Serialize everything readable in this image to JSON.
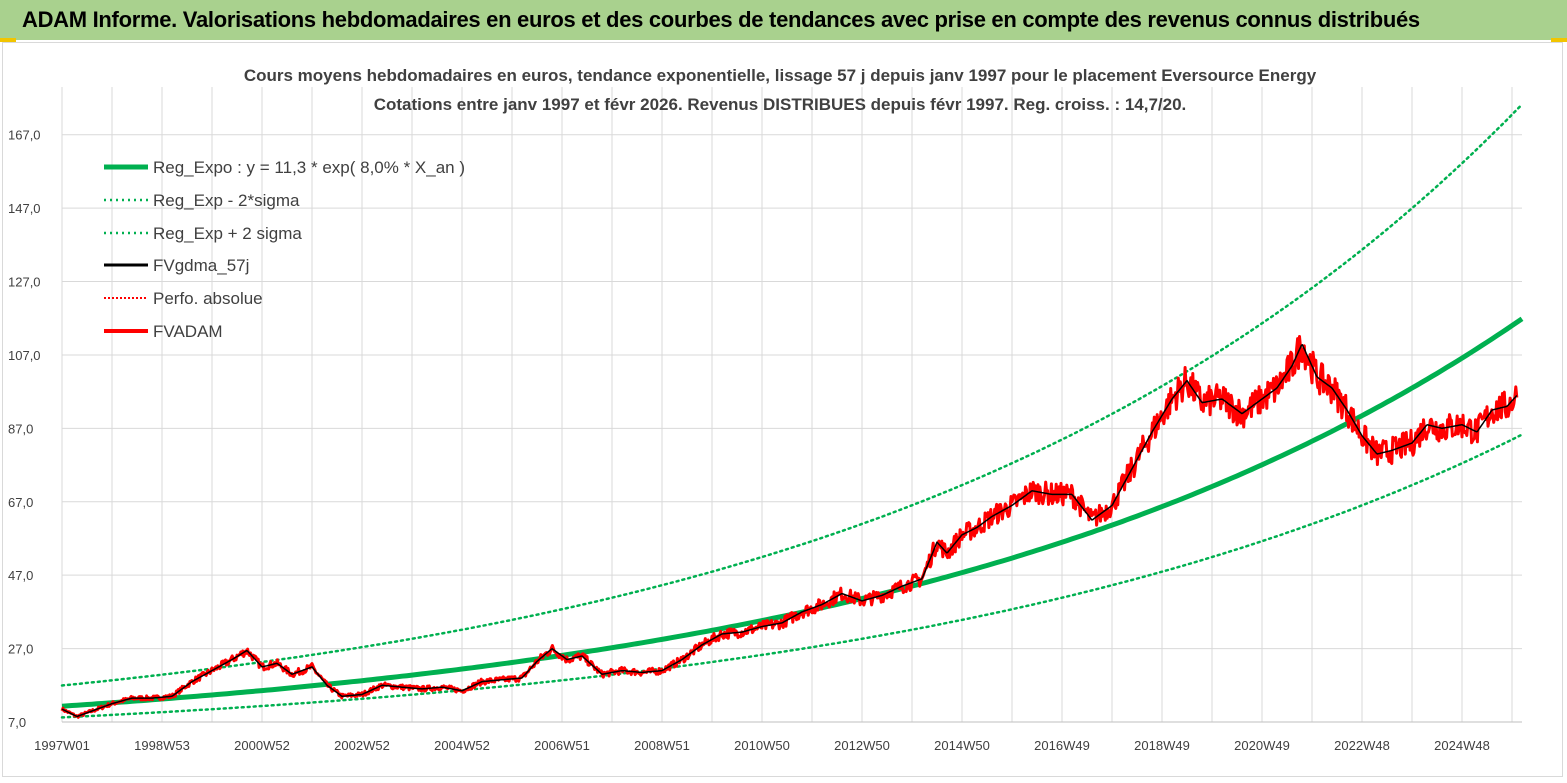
{
  "banner": {
    "title": "ADAM Informe. Valorisations hebdomadaires en euros et des courbes de tendances avec prise en compte des revenus connus distribués"
  },
  "chart_data": {
    "type": "line",
    "title_lines": [
      "Cours moyens hebdomadaires en euros, tendance exponentielle, lissage 57 j depuis janv 1997 pour le placement Eversource Energy",
      "Cotations entre janv 1997 et févr 2026. Revenus DISTRIBUES depuis févr 1997. Reg. croiss. : 14,7/20."
    ],
    "xlabel": "",
    "ylabel": "",
    "grid": true,
    "legend_position": "top-left",
    "xlim": [
      1997.0,
      2026.2
    ],
    "ylim": [
      7.0,
      180.0
    ],
    "y_ticks": [
      7.0,
      27.0,
      47.0,
      67.0,
      87.0,
      107.0,
      127.0,
      147.0,
      167.0
    ],
    "y_tick_labels": [
      "7,0",
      "27,0",
      "47,0",
      "67,0",
      "87,0",
      "107,0",
      "127,0",
      "147,0",
      "167,0"
    ],
    "x_ticks": [
      1997.0,
      1999.0,
      2001.0,
      2003.0,
      2005.0,
      2007.0,
      2009.0,
      2011.0,
      2013.0,
      2015.0,
      2017.0,
      2019.0,
      2021.0,
      2023.0,
      2025.0
    ],
    "x_tick_labels": [
      "1997W01",
      "1998W53",
      "2000W52",
      "2002W52",
      "2004W52",
      "2006W51",
      "2008W51",
      "2010W50",
      "2012W50",
      "2014W50",
      "2016W49",
      "2018W49",
      "2020W49",
      "2022W48",
      "2024W48"
    ],
    "regression": {
      "a": 11.3,
      "rate_pct": 8.0,
      "sigma_factor_low": 0.73,
      "sigma_factor_high": 1.5
    },
    "series": [
      {
        "name": "Reg_Expo : y = 11,3 * exp( 8,0% *  X_an )",
        "color": "#00b050",
        "style": "solid-thick"
      },
      {
        "name": "Reg_Exp - 2*sigma",
        "color": "#00b050",
        "style": "dotted"
      },
      {
        "name": "Reg_Exp + 2 sigma",
        "color": "#00b050",
        "style": "dotted"
      },
      {
        "name": "FVgdma_57j",
        "color": "#000000",
        "style": "solid"
      },
      {
        "name": "Perfo. absolue",
        "color": "#ff0000",
        "style": "dotted"
      },
      {
        "name": "FVADAM",
        "color": "#ff0000",
        "style": "solid-thick",
        "x": [
          1997.0,
          1997.3,
          1997.6,
          1998.0,
          1998.4,
          1998.8,
          1999.2,
          1999.6,
          2000.0,
          2000.4,
          2000.7,
          2001.0,
          2001.3,
          2001.6,
          2002.0,
          2002.3,
          2002.6,
          2003.0,
          2003.4,
          2003.8,
          2004.2,
          2004.6,
          2005.0,
          2005.4,
          2005.8,
          2006.2,
          2006.5,
          2006.8,
          2007.1,
          2007.4,
          2007.8,
          2008.2,
          2008.6,
          2009.0,
          2009.4,
          2009.8,
          2010.2,
          2010.6,
          2011.0,
          2011.4,
          2011.8,
          2012.2,
          2012.6,
          2013.0,
          2013.4,
          2013.8,
          2014.2,
          2014.5,
          2014.7,
          2015.0,
          2015.3,
          2015.6,
          2016.0,
          2016.4,
          2016.8,
          2017.2,
          2017.6,
          2018.0,
          2018.4,
          2018.8,
          2019.2,
          2019.5,
          2019.8,
          2020.2,
          2020.6,
          2021.0,
          2021.3,
          2021.6,
          2021.8,
          2022.1,
          2022.4,
          2022.7,
          2023.0,
          2023.3,
          2023.6,
          2024.0,
          2024.3,
          2024.6,
          2025.0,
          2025.3,
          2025.6,
          2025.9,
          2026.1
        ],
        "values": [
          10.5,
          8.5,
          10.0,
          12.0,
          13.5,
          13.5,
          14.0,
          18.0,
          21.0,
          24.0,
          26.5,
          22.0,
          23.0,
          20.0,
          22.0,
          17.0,
          14.0,
          14.5,
          17.0,
          16.5,
          16.0,
          16.5,
          15.5,
          18.0,
          18.5,
          19.0,
          23.5,
          27.0,
          24.0,
          25.0,
          20.0,
          21.0,
          20.5,
          21.0,
          24.0,
          28.0,
          31.0,
          31.5,
          33.0,
          34.0,
          37.0,
          39.0,
          42.0,
          40.0,
          41.5,
          44.0,
          46.0,
          56.0,
          53.0,
          58.0,
          60.0,
          63.0,
          66.0,
          70.0,
          69.0,
          69.0,
          62.0,
          66.0,
          76.0,
          86.0,
          95.0,
          100.0,
          94.0,
          95.0,
          91.0,
          95.0,
          98.0,
          104.0,
          110.0,
          101.0,
          98.0,
          92.0,
          85.0,
          80.0,
          81.0,
          83.0,
          88.0,
          87.0,
          88.0,
          86.0,
          92.0,
          93.0,
          96.0
        ]
      }
    ]
  }
}
